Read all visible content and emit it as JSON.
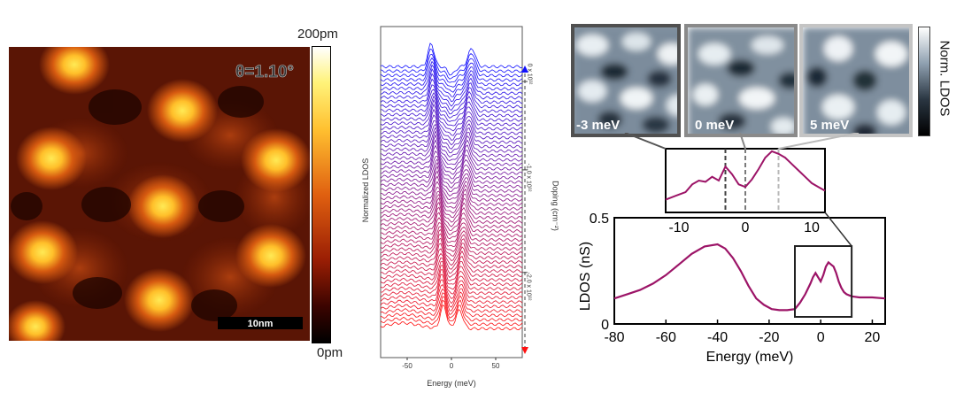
{
  "figure": {
    "panel_a": {
      "twist_label": "θ=1.10°",
      "scalebar_label": "10nm",
      "colorbar_max": "200pm",
      "colorbar_min": "0pm"
    },
    "panel_b": {
      "ylabel": "Normalized LDOS",
      "xlabel": "Energy (meV)",
      "doping_label": "Doping (cm⁻²)",
      "doping_ticks": [
        "0 x 10¹²",
        "-1.0 x 10¹²",
        "-2.0 x 10¹²"
      ]
    },
    "panel_c": {
      "map_labels": [
        "-3 meV",
        "0 meV",
        "5 meV"
      ],
      "colorbar_label": "Norm. LDOS"
    },
    "colors": {
      "afm_dark": "#2a0600",
      "afm_bright": "#ffd23c",
      "spectrum_top": "#1010ff",
      "spectrum_bottom": "#ff1010",
      "ldos_line": "#9c1467"
    }
  },
  "chart_data": [
    {
      "type": "line",
      "panel": "b",
      "title": "",
      "xlabel": "Energy (meV)",
      "ylabel": "Normalized LDOS",
      "x_ticks": [
        -50,
        0,
        50
      ],
      "xlim": [
        -80,
        80
      ],
      "series_count": 60,
      "doping_range_1e12_cm2": [
        0,
        -2.3
      ]
    },
    {
      "type": "line",
      "panel": "c-main",
      "title": "",
      "xlabel": "Energy (meV)",
      "ylabel": "LDOS (nS)",
      "xlim": [
        -80,
        25
      ],
      "ylim": [
        0,
        0.5
      ],
      "x_ticks": [
        -80,
        -60,
        -40,
        -20,
        0,
        20
      ],
      "y_ticks": [
        "0",
        "0.5"
      ],
      "series": [
        {
          "x": [
            -80,
            -75,
            -70,
            -65,
            -60,
            -55,
            -50,
            -45,
            -40,
            -37,
            -34,
            -31,
            -28,
            -25,
            -22,
            -19,
            -16,
            -13,
            -10,
            -8,
            -6,
            -4,
            -3,
            -2,
            -1,
            0,
            1,
            2,
            3,
            4,
            5,
            6,
            7,
            8,
            9,
            10,
            12,
            15,
            20,
            25
          ],
          "y": [
            0.12,
            0.14,
            0.16,
            0.19,
            0.23,
            0.28,
            0.33,
            0.365,
            0.375,
            0.355,
            0.31,
            0.25,
            0.18,
            0.12,
            0.09,
            0.07,
            0.065,
            0.065,
            0.07,
            0.1,
            0.14,
            0.19,
            0.22,
            0.24,
            0.22,
            0.2,
            0.23,
            0.27,
            0.29,
            0.28,
            0.27,
            0.24,
            0.2,
            0.17,
            0.15,
            0.14,
            0.13,
            0.125,
            0.125,
            0.12
          ]
        }
      ]
    },
    {
      "type": "line",
      "panel": "c-inset",
      "title": "",
      "xlim": [
        -12,
        12
      ],
      "x_ticks": [
        -10,
        0,
        10
      ],
      "markers_meV": [
        -3,
        0,
        5
      ],
      "series": [
        {
          "x": [
            -12,
            -10,
            -9,
            -8,
            -7,
            -6,
            -5,
            -4,
            -3,
            -2,
            -1,
            0,
            1,
            2,
            3,
            4,
            5,
            6,
            7,
            8,
            9,
            10,
            11,
            12
          ],
          "y": [
            0.1,
            0.14,
            0.16,
            0.22,
            0.25,
            0.24,
            0.28,
            0.25,
            0.36,
            0.3,
            0.22,
            0.2,
            0.26,
            0.34,
            0.43,
            0.48,
            0.46,
            0.43,
            0.38,
            0.33,
            0.28,
            0.23,
            0.2,
            0.17
          ]
        }
      ]
    }
  ]
}
